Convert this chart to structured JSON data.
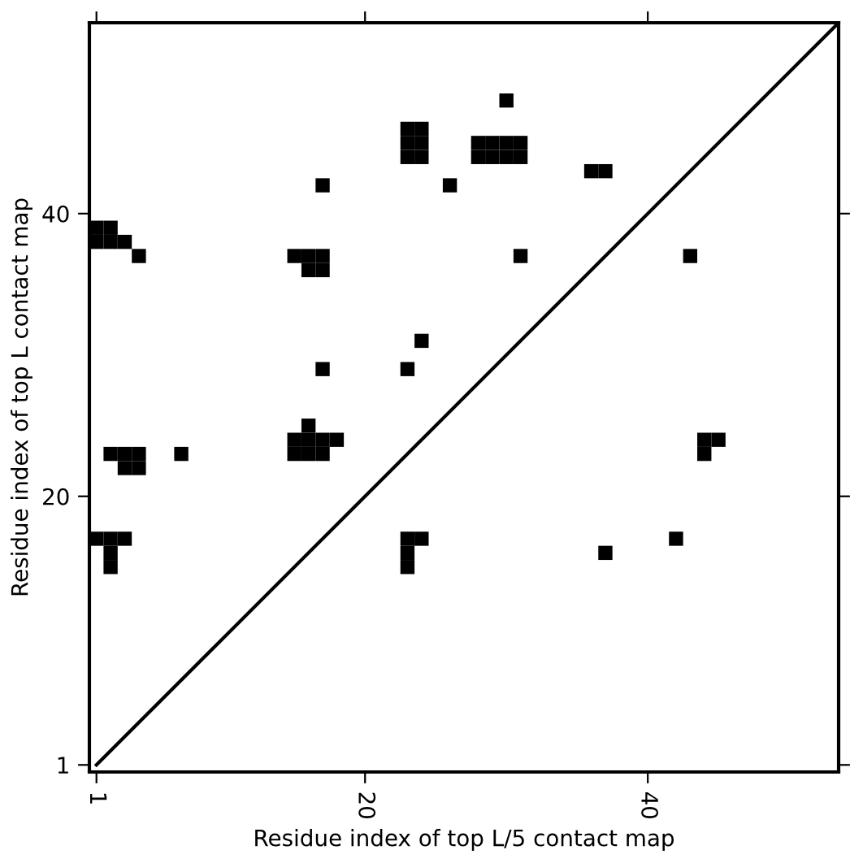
{
  "chart_data": {
    "type": "scatter",
    "xlabel": "Residue index of top L/5 contact map",
    "ylabel": "Residue index of top L contact map",
    "xlim": [
      0.5,
      53.5
    ],
    "ylim": [
      0.5,
      53.5
    ],
    "xticks": [
      1,
      20,
      40
    ],
    "yticks": [
      1,
      20,
      40
    ],
    "grid": false,
    "legend": false,
    "marker": "square",
    "series": [
      {
        "color": "#000000",
        "x": [
          30,
          23,
          24,
          23,
          24,
          23,
          24,
          28,
          29,
          30,
          31,
          28,
          29,
          30,
          31,
          17,
          26,
          36,
          37,
          1,
          2,
          1,
          2,
          3,
          4,
          15,
          16,
          17,
          16,
          17,
          17,
          31,
          43,
          24,
          23,
          2,
          3,
          4,
          3,
          4,
          7,
          16,
          15,
          16,
          17,
          18,
          15,
          16,
          17,
          44,
          45,
          44,
          1,
          2,
          3,
          2,
          2,
          23,
          24,
          23,
          23,
          37,
          42
        ],
        "values": [
          48,
          46,
          46,
          45,
          45,
          44,
          44,
          45,
          45,
          45,
          45,
          44,
          44,
          44,
          44,
          42,
          42,
          43,
          43,
          39,
          39,
          38,
          38,
          38,
          37,
          37,
          37,
          37,
          36,
          36,
          29,
          37,
          37,
          31,
          29,
          23,
          23,
          23,
          22,
          22,
          23,
          25,
          24,
          24,
          24,
          24,
          23,
          23,
          23,
          24,
          24,
          23,
          17,
          17,
          17,
          16,
          15,
          17,
          17,
          16,
          15,
          16,
          17
        ]
      },
      {
        "type": "line",
        "color": "#000000",
        "line_style": "solid",
        "marker": "none",
        "x": [
          1,
          53.5
        ],
        "values": [
          1,
          53.5
        ]
      }
    ]
  }
}
